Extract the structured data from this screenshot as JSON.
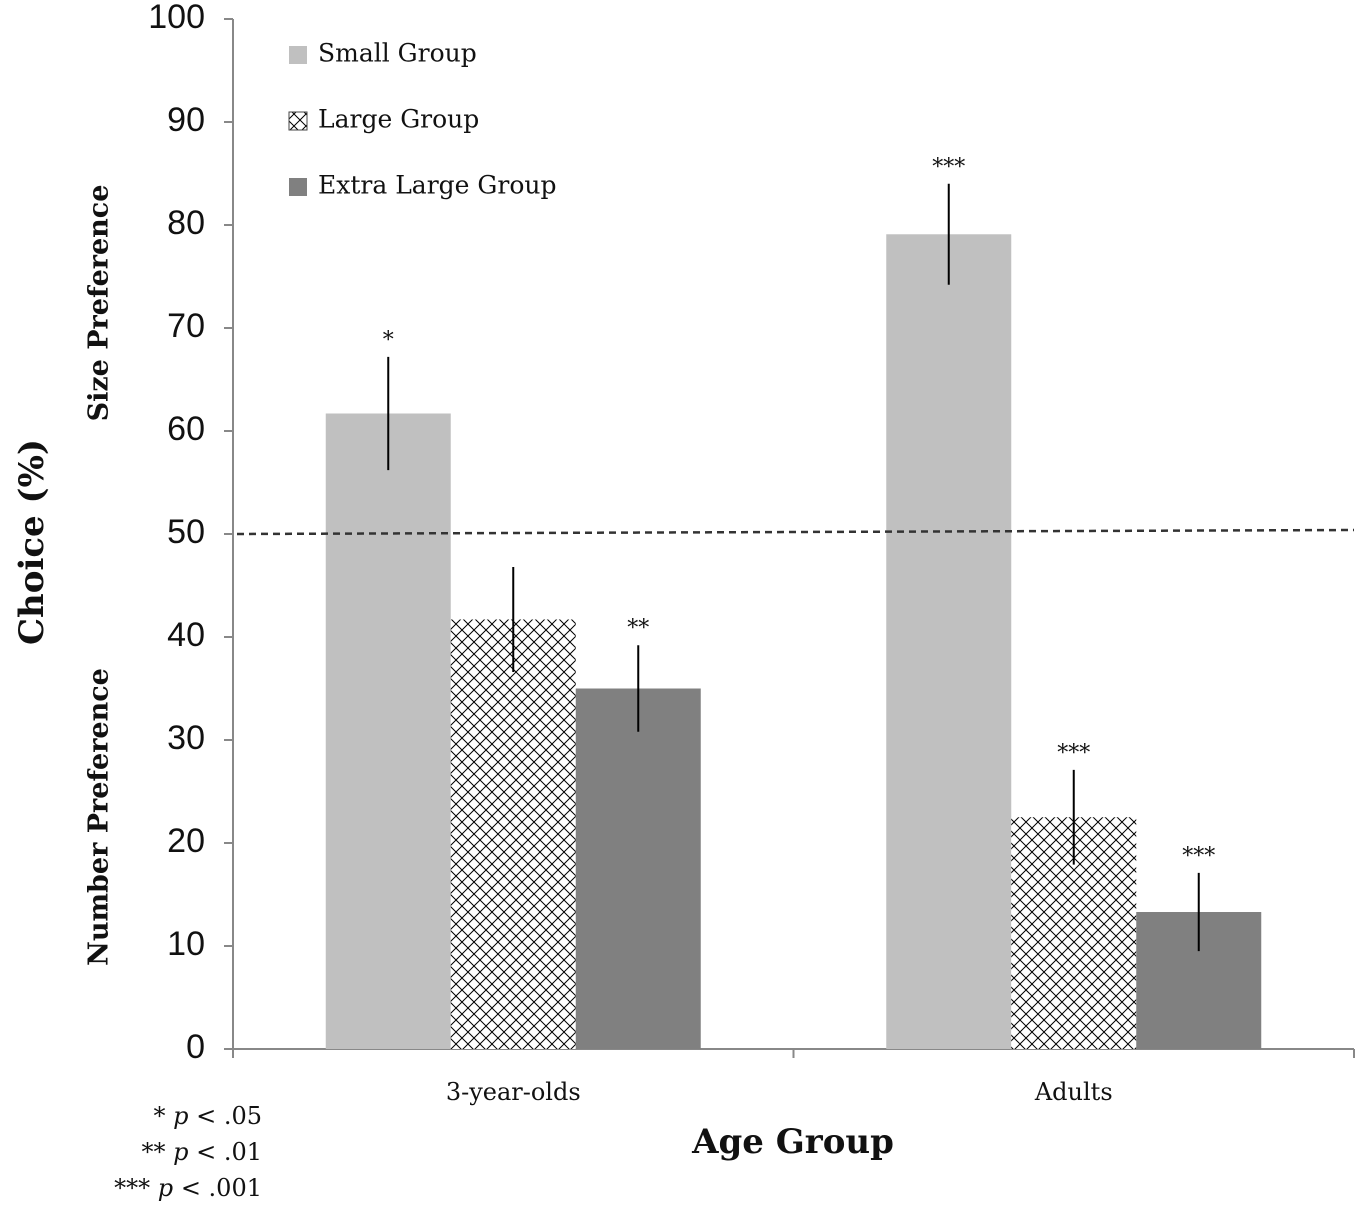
{
  "chart_data": {
    "type": "bar",
    "title": "",
    "xlabel": "Age Group",
    "ylabel": "Choice (%)",
    "ylabel_upper": "Size Preference",
    "ylabel_lower": "Number Preference",
    "ylim": [
      0,
      100
    ],
    "yticks": [
      0,
      10,
      20,
      30,
      40,
      50,
      60,
      70,
      80,
      90,
      100
    ],
    "reference_line": 50,
    "categories": [
      "3-year-olds",
      "Adults"
    ],
    "series": [
      {
        "name": "Small Group",
        "values": [
          61.7,
          79.1
        ],
        "errors": [
          5.5,
          4.9
        ],
        "significance": [
          "*",
          "***"
        ],
        "color": "#c0c0c0",
        "pattern": "solid"
      },
      {
        "name": "Large Group",
        "values": [
          41.7,
          22.5
        ],
        "errors": [
          5.1,
          4.6
        ],
        "significance": [
          "",
          "***"
        ],
        "color": "#ffffff",
        "pattern": "crosshatch"
      },
      {
        "name": "Extra Large Group",
        "values": [
          35.0,
          13.3
        ],
        "errors": [
          4.2,
          3.8
        ],
        "significance": [
          "**",
          "***"
        ],
        "color": "#808080",
        "pattern": "solid"
      }
    ],
    "legend_position": "top-left"
  },
  "footnotes": [
    {
      "stars": "*",
      "p": "p",
      "text": "< .05"
    },
    {
      "stars": "**",
      "p": "p",
      "text": "< .01"
    },
    {
      "stars": "***",
      "p": "p",
      "text": "< .001"
    }
  ]
}
